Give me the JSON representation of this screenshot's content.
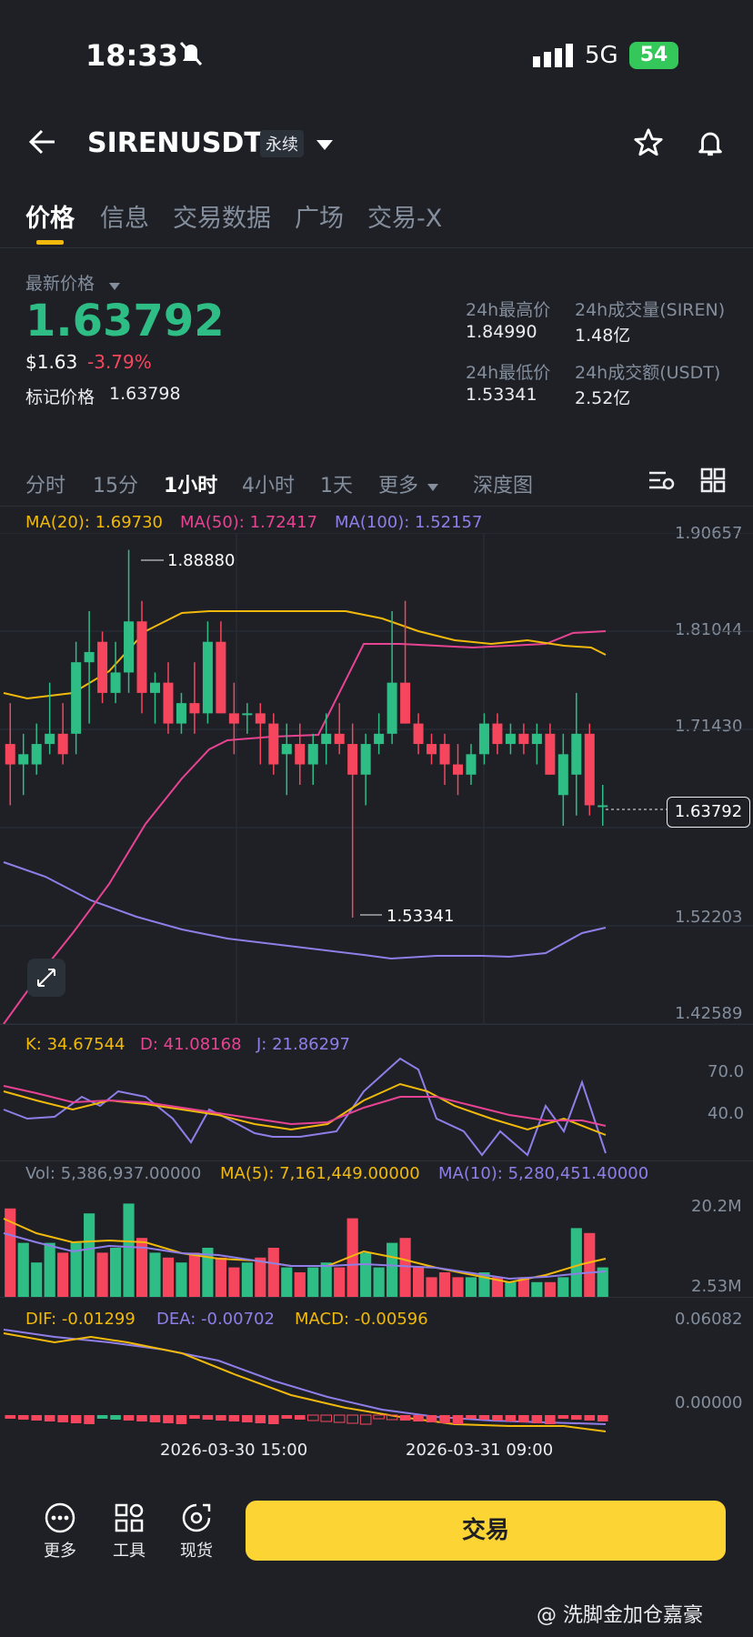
{
  "status": {
    "time": "18:33",
    "network": "5G",
    "battery": "54"
  },
  "header": {
    "symbol": "SIRENUSDT",
    "contract_tag": "永续"
  },
  "tabs": [
    "价格",
    "信息",
    "交易数据",
    "广场",
    "交易-X"
  ],
  "ticker": {
    "last_price_label": "最新价格",
    "last_price": "1.63792",
    "usd_price": "$1.63",
    "change_pct": "-3.79%",
    "mark_label": "标记价格",
    "mark_price": "1.63798",
    "high_label": "24h最高价",
    "high": "1.84990",
    "low_label": "24h最低价",
    "low": "1.53341",
    "vol_label": "24h成交量(SIREN)",
    "vol": "1.48亿",
    "turnover_label": "24h成交额(USDT)",
    "turnover": "2.52亿"
  },
  "intervals": [
    "分时",
    "15分",
    "1小时",
    "4小时",
    "1天",
    "更多",
    "深度图"
  ],
  "ma_legend": {
    "ma20": "MA(20): 1.69730",
    "ma50": "MA(50): 1.72417",
    "ma100": "MA(100): 1.52157"
  },
  "price_axis": [
    "1.90657",
    "1.81044",
    "1.71430",
    "1.52203",
    "1.42589"
  ],
  "current_price_box": "1.63792",
  "hi_marker": "1.88880",
  "lo_marker": "1.53341",
  "kdj": {
    "k": "K: 34.67544",
    "d": "D: 41.08168",
    "j": "J: 21.86297",
    "axis": [
      "70.0",
      "40.0"
    ]
  },
  "vol_legend": {
    "vol": "Vol: 5,386,937.00000",
    "ma5": "MA(5): 7,161,449.00000",
    "ma10": "MA(10): 5,280,451.40000",
    "axis": [
      "20.2M",
      "2.53M"
    ]
  },
  "macd": {
    "dif": "DIF: -0.01299",
    "dea": "DEA: -0.00702",
    "macd": "MACD: -0.00596",
    "axis": [
      "0.06082",
      "0.00000"
    ]
  },
  "time_axis": [
    "2026-03-30 15:00",
    "2026-03-31 09:00"
  ],
  "bottom": {
    "more": "更多",
    "tools": "工具",
    "spot": "现货",
    "trade": "交易"
  },
  "watermark": "@ 洗脚金加仓嘉豪",
  "colors": {
    "up": "#2ebd85",
    "down": "#f6465d",
    "ma20": "#f0b90b",
    "ma50": "#e84393",
    "ma100": "#8f7ee7"
  },
  "chart_data": {
    "type": "candlestick",
    "candles": [
      {
        "o": 1.7,
        "h": 1.74,
        "l": 1.64,
        "c": 1.68
      },
      {
        "o": 1.68,
        "h": 1.71,
        "l": 1.65,
        "c": 1.69
      },
      {
        "o": 1.68,
        "h": 1.72,
        "l": 1.67,
        "c": 1.7
      },
      {
        "o": 1.7,
        "h": 1.76,
        "l": 1.69,
        "c": 1.71
      },
      {
        "o": 1.71,
        "h": 1.74,
        "l": 1.68,
        "c": 1.69
      },
      {
        "o": 1.71,
        "h": 1.8,
        "l": 1.69,
        "c": 1.78
      },
      {
        "o": 1.78,
        "h": 1.83,
        "l": 1.72,
        "c": 1.79
      },
      {
        "o": 1.8,
        "h": 1.81,
        "l": 1.74,
        "c": 1.75
      },
      {
        "o": 1.75,
        "h": 1.8,
        "l": 1.74,
        "c": 1.77
      },
      {
        "o": 1.77,
        "h": 1.89,
        "l": 1.75,
        "c": 1.82
      },
      {
        "o": 1.82,
        "h": 1.84,
        "l": 1.73,
        "c": 1.75
      },
      {
        "o": 1.75,
        "h": 1.77,
        "l": 1.72,
        "c": 1.76
      },
      {
        "o": 1.76,
        "h": 1.78,
        "l": 1.71,
        "c": 1.72
      },
      {
        "o": 1.72,
        "h": 1.75,
        "l": 1.71,
        "c": 1.74
      },
      {
        "o": 1.74,
        "h": 1.78,
        "l": 1.71,
        "c": 1.73
      },
      {
        "o": 1.73,
        "h": 1.82,
        "l": 1.72,
        "c": 1.8
      },
      {
        "o": 1.8,
        "h": 1.82,
        "l": 1.73,
        "c": 1.73
      },
      {
        "o": 1.73,
        "h": 1.76,
        "l": 1.69,
        "c": 1.72
      },
      {
        "o": 1.73,
        "h": 1.74,
        "l": 1.71,
        "c": 1.73
      },
      {
        "o": 1.73,
        "h": 1.74,
        "l": 1.68,
        "c": 1.72
      },
      {
        "o": 1.72,
        "h": 1.73,
        "l": 1.67,
        "c": 1.68
      },
      {
        "o": 1.69,
        "h": 1.72,
        "l": 1.65,
        "c": 1.7
      },
      {
        "o": 1.7,
        "h": 1.72,
        "l": 1.66,
        "c": 1.68
      },
      {
        "o": 1.68,
        "h": 1.71,
        "l": 1.66,
        "c": 1.7
      },
      {
        "o": 1.7,
        "h": 1.73,
        "l": 1.68,
        "c": 1.71
      },
      {
        "o": 1.71,
        "h": 1.74,
        "l": 1.69,
        "c": 1.7
      },
      {
        "o": 1.7,
        "h": 1.72,
        "l": 1.53,
        "c": 1.67
      },
      {
        "o": 1.67,
        "h": 1.71,
        "l": 1.64,
        "c": 1.7
      },
      {
        "o": 1.7,
        "h": 1.73,
        "l": 1.69,
        "c": 1.71
      },
      {
        "o": 1.71,
        "h": 1.83,
        "l": 1.7,
        "c": 1.76
      },
      {
        "o": 1.76,
        "h": 1.84,
        "l": 1.72,
        "c": 1.72
      },
      {
        "o": 1.72,
        "h": 1.73,
        "l": 1.69,
        "c": 1.7
      },
      {
        "o": 1.7,
        "h": 1.71,
        "l": 1.68,
        "c": 1.69
      },
      {
        "o": 1.7,
        "h": 1.71,
        "l": 1.66,
        "c": 1.68
      },
      {
        "o": 1.68,
        "h": 1.7,
        "l": 1.65,
        "c": 1.67
      },
      {
        "o": 1.67,
        "h": 1.7,
        "l": 1.66,
        "c": 1.69
      },
      {
        "o": 1.69,
        "h": 1.73,
        "l": 1.68,
        "c": 1.72
      },
      {
        "o": 1.72,
        "h": 1.73,
        "l": 1.69,
        "c": 1.7
      },
      {
        "o": 1.7,
        "h": 1.72,
        "l": 1.69,
        "c": 1.71
      },
      {
        "o": 1.71,
        "h": 1.72,
        "l": 1.69,
        "c": 1.7
      },
      {
        "o": 1.7,
        "h": 1.72,
        "l": 1.68,
        "c": 1.71
      },
      {
        "o": 1.71,
        "h": 1.72,
        "l": 1.67,
        "c": 1.67
      },
      {
        "o": 1.65,
        "h": 1.71,
        "l": 1.62,
        "c": 1.69
      },
      {
        "o": 1.67,
        "h": 1.75,
        "l": 1.63,
        "c": 1.71
      },
      {
        "o": 1.71,
        "h": 1.72,
        "l": 1.63,
        "c": 1.64
      },
      {
        "o": 1.64,
        "h": 1.66,
        "l": 1.62,
        "c": 1.64
      }
    ],
    "ylim": [
      1.42589,
      1.90657
    ]
  }
}
